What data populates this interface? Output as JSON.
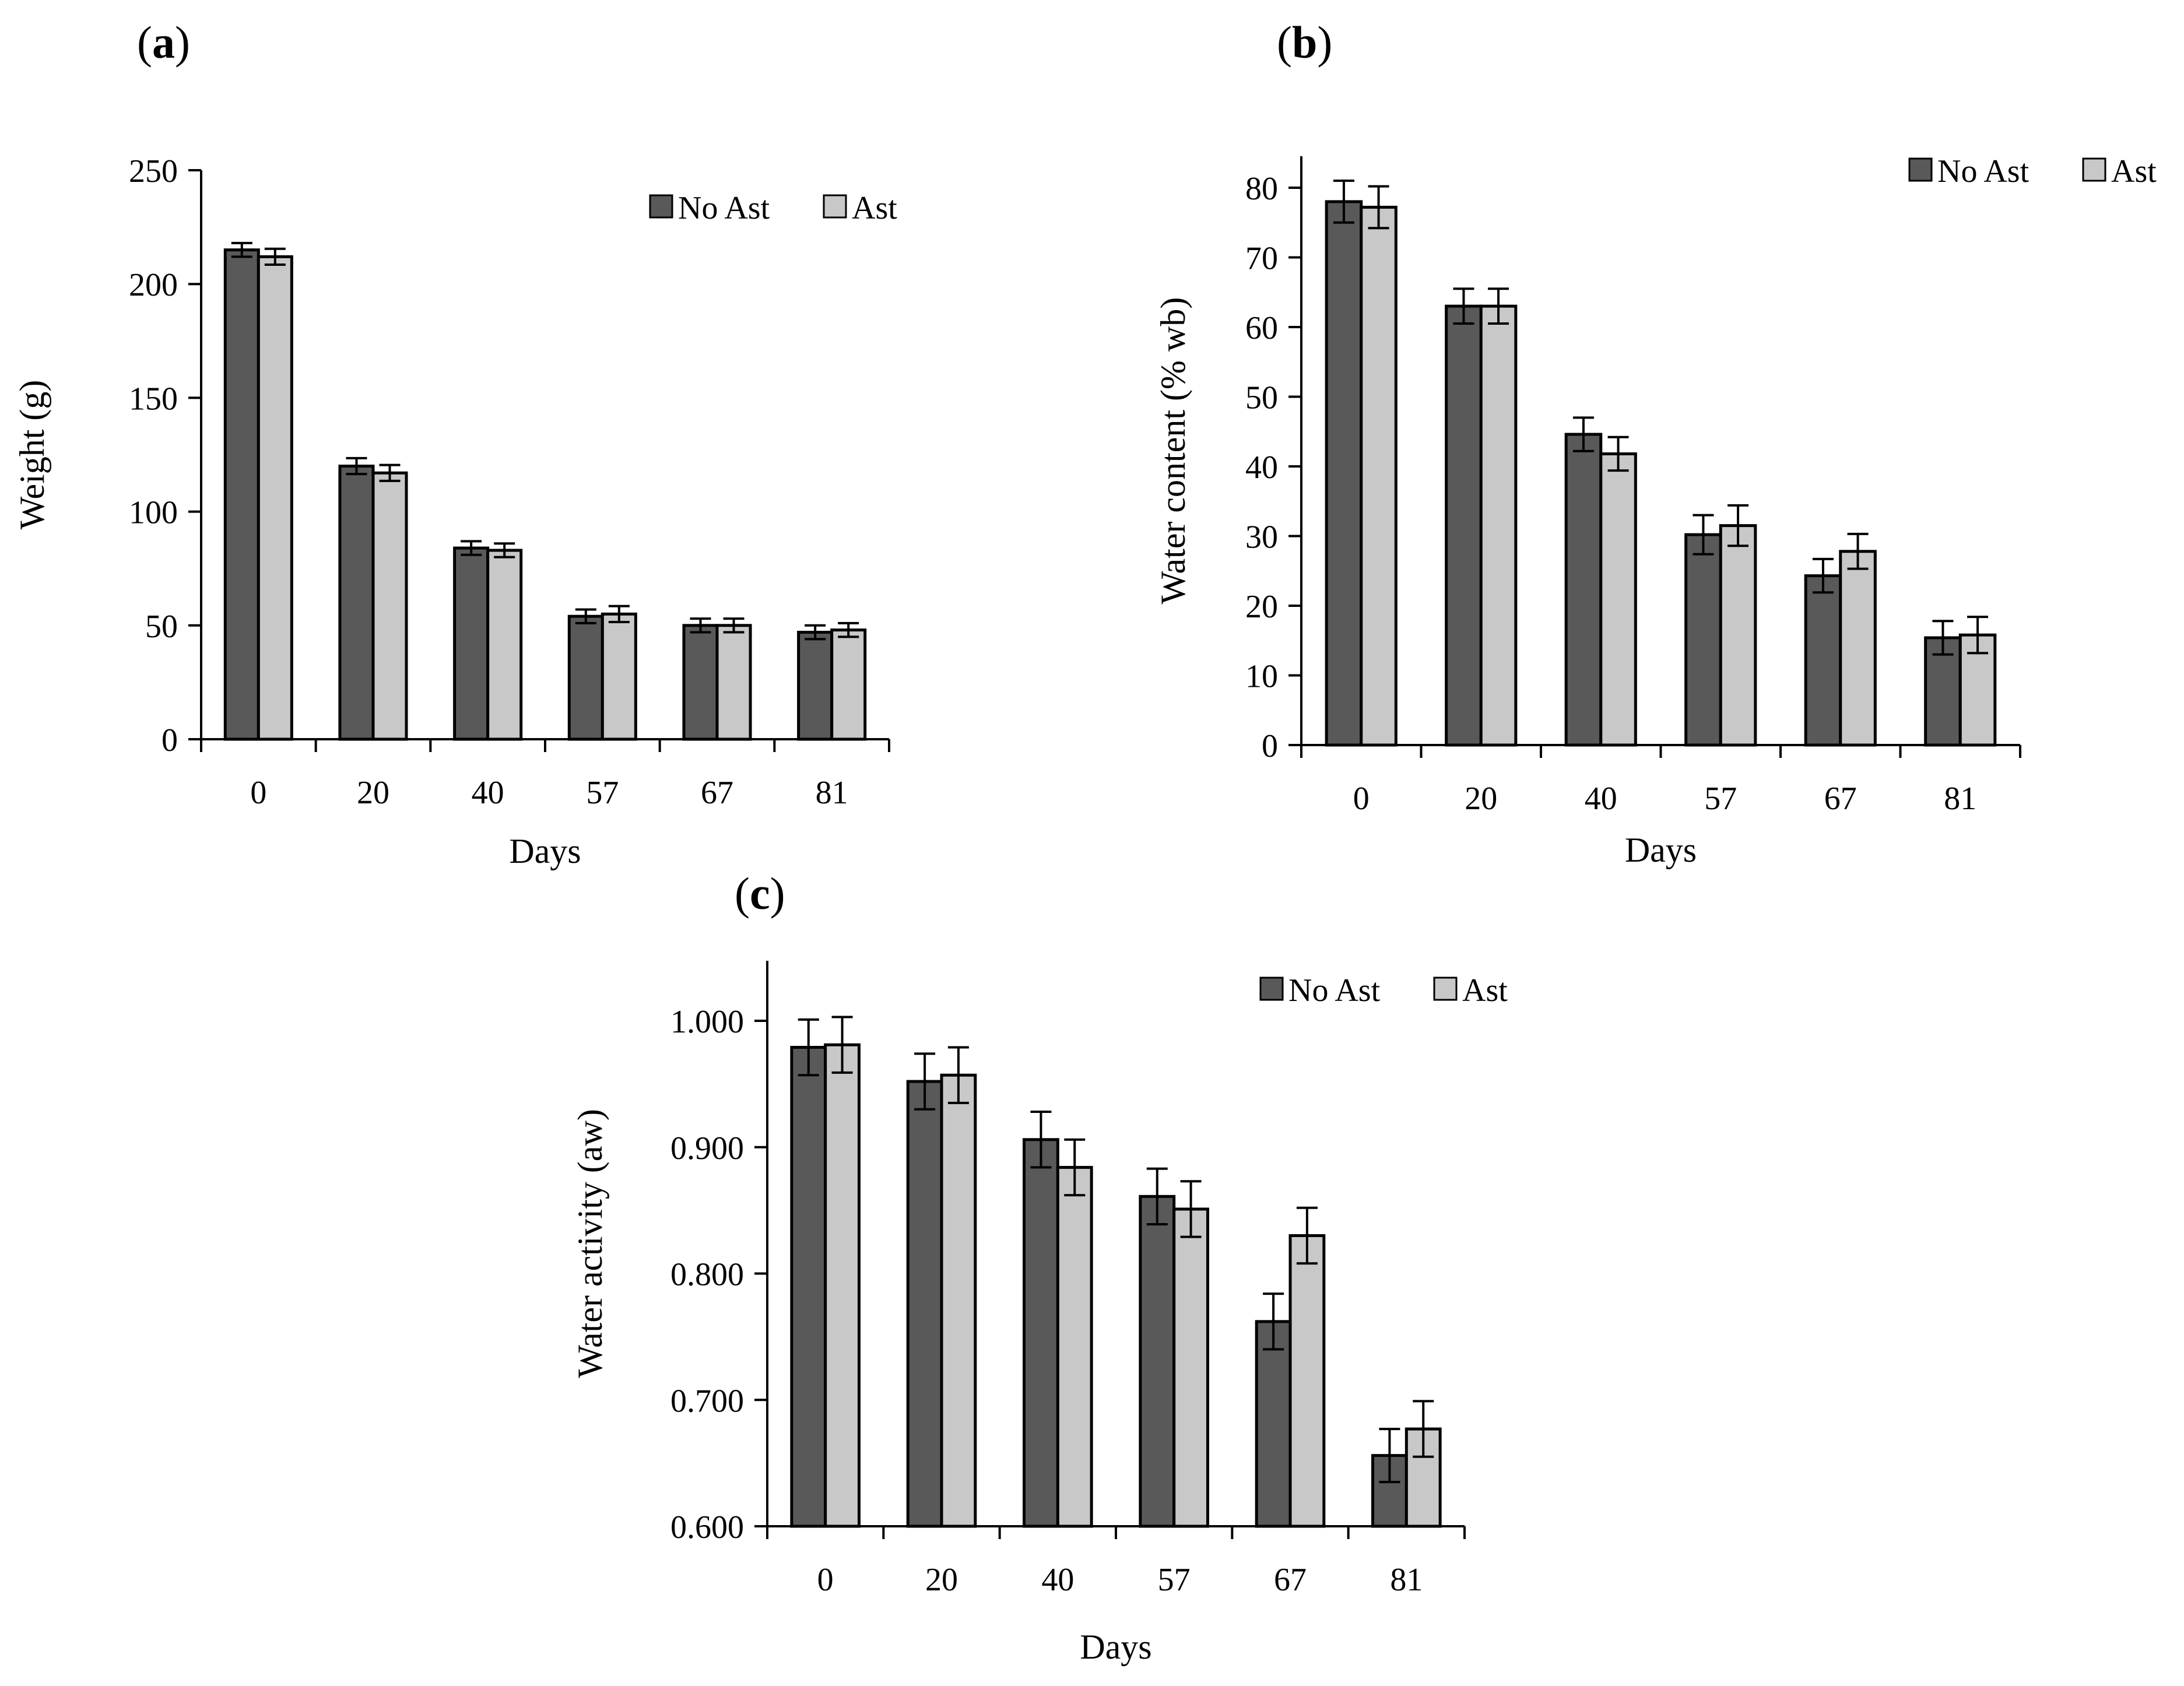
{
  "colors": {
    "no_ast": "#595959",
    "ast": "#c8c8c8",
    "edge": "#000000"
  },
  "chart_data": [
    {
      "type": "bar",
      "panel_label": "a",
      "title": "",
      "xlabel": "Days",
      "ylabel": "Weight (g)",
      "categories": [
        "0",
        "20",
        "40",
        "57",
        "67",
        "81"
      ],
      "ylim": [
        0,
        250
      ],
      "yticks": [
        "0",
        "50",
        "100",
        "150",
        "200",
        "250"
      ],
      "legend": "top-right",
      "series": [
        {
          "name": "No Ast",
          "values": [
            215,
            120,
            84,
            54,
            50,
            47
          ],
          "errors": [
            3,
            3.5,
            3,
            3,
            3,
            3
          ]
        },
        {
          "name": "Ast",
          "values": [
            212,
            117,
            83,
            55,
            50,
            48
          ],
          "errors": [
            3.5,
            3.5,
            3,
            3.5,
            3,
            3
          ]
        }
      ]
    },
    {
      "type": "bar",
      "panel_label": "b",
      "title": "",
      "xlabel": "Days",
      "ylabel": "Water content (% wb)",
      "categories": [
        "0",
        "20",
        "40",
        "57",
        "67",
        "81"
      ],
      "ylim": [
        0,
        84
      ],
      "yticks": [
        "0",
        "10",
        "20",
        "30",
        "40",
        "50",
        "60",
        "70",
        "80"
      ],
      "legend": "top-right",
      "series": [
        {
          "name": "No Ast",
          "values": [
            78,
            63,
            44.6,
            30.2,
            24.3,
            15.4
          ],
          "errors": [
            3,
            2.5,
            2.4,
            2.8,
            2.4,
            2.4
          ]
        },
        {
          "name": "Ast",
          "values": [
            77.2,
            63,
            41.8,
            31.5,
            27.8,
            15.8
          ],
          "errors": [
            3,
            2.5,
            2.4,
            2.9,
            2.5,
            2.6
          ]
        }
      ]
    },
    {
      "type": "bar",
      "panel_label": "c",
      "title": "",
      "xlabel": "Days",
      "ylabel": "Water activity (aw)",
      "categories": [
        "0",
        "20",
        "40",
        "57",
        "67",
        "81"
      ],
      "ylim": [
        0.6,
        1.05
      ],
      "yticks": [
        "0.600",
        "0.700",
        "0.800",
        "0.900",
        "1.000"
      ],
      "legend": "top-right",
      "series": [
        {
          "name": "No Ast",
          "values": [
            0.979,
            0.952,
            0.906,
            0.861,
            0.762,
            0.656
          ],
          "errors": [
            0.022,
            0.022,
            0.022,
            0.022,
            0.022,
            0.021
          ]
        },
        {
          "name": "Ast",
          "values": [
            0.981,
            0.957,
            0.884,
            0.851,
            0.83,
            0.677
          ],
          "errors": [
            0.022,
            0.022,
            0.022,
            0.022,
            0.022,
            0.022
          ]
        }
      ]
    }
  ]
}
